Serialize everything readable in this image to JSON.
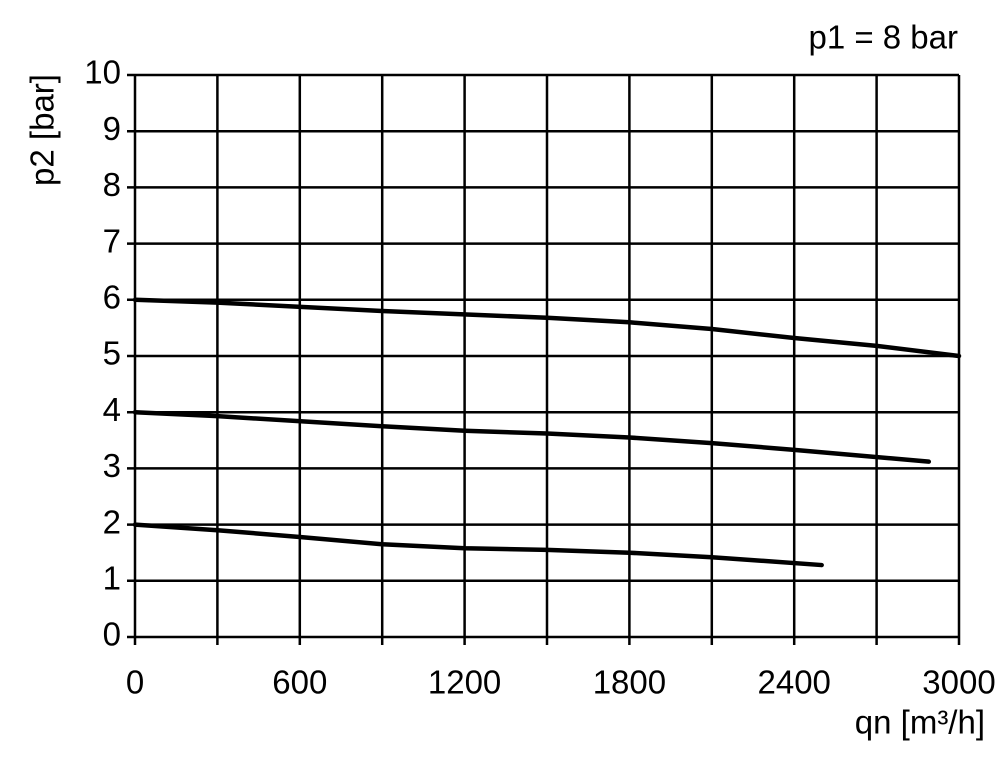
{
  "chart_data": {
    "type": "line",
    "annotation": "p1 = 8 bar",
    "x_label": "qn [m³/h]",
    "y_label": "p2 [bar]",
    "xlim": [
      0,
      3000
    ],
    "xticks": [
      0,
      600,
      1200,
      1800,
      2400,
      3000
    ],
    "xminor": [
      300,
      900,
      1500,
      2100,
      2700
    ],
    "ylim": [
      0,
      10
    ],
    "yticks": [
      0,
      1,
      2,
      3,
      4,
      5,
      6,
      7,
      8,
      9,
      10
    ],
    "grid": true,
    "series": [
      {
        "color": "#000000",
        "x": [
          0,
          300,
          900,
          1500,
          1800,
          2100,
          2400,
          2700,
          3000
        ],
        "values": [
          6.0,
          5.95,
          5.8,
          5.68,
          5.6,
          5.48,
          5.32,
          5.18,
          5.0
        ]
      },
      {
        "color": "#000000",
        "x": [
          0,
          300,
          900,
          1200,
          1500,
          1800,
          2100,
          2400,
          2890
        ],
        "values": [
          4.0,
          3.93,
          3.75,
          3.67,
          3.62,
          3.55,
          3.45,
          3.33,
          3.12
        ]
      },
      {
        "color": "#000000",
        "x": [
          0,
          300,
          600,
          900,
          1200,
          1500,
          1800,
          2100,
          2500
        ],
        "values": [
          2.0,
          1.9,
          1.78,
          1.65,
          1.58,
          1.55,
          1.5,
          1.42,
          1.28
        ]
      }
    ]
  }
}
